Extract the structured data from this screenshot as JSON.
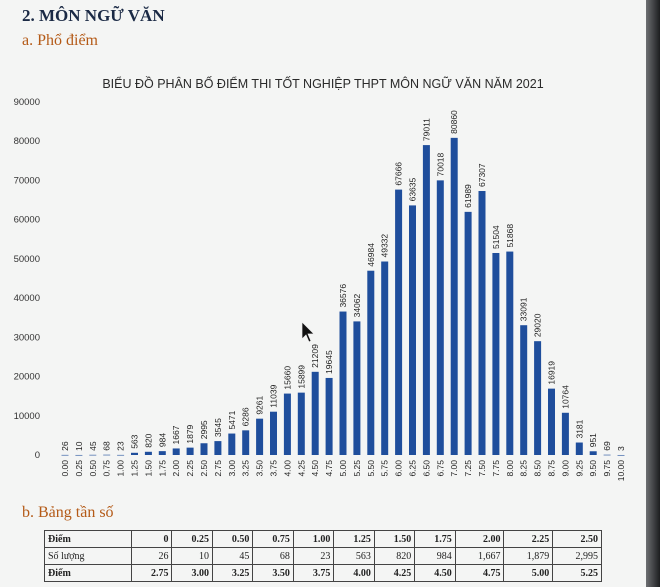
{
  "section": {
    "number_title": "2. MÔN NGỮ VĂN",
    "sub_a": "a.  Phổ điểm",
    "sub_b": "b.  Bảng tần số"
  },
  "colors": {
    "bar": "#1f4e9c",
    "title": "#2a2a2a",
    "accent": "#b45a17"
  },
  "chart_data": {
    "type": "bar",
    "title": "BIỂU ĐỒ PHÂN BỐ ĐIỂM THI TỐT NGHIỆP THPT MÔN NGỮ VĂN NĂM 2021",
    "xlabel": "",
    "ylabel": "",
    "ylim": [
      0,
      90000
    ],
    "yticks": [
      0,
      10000,
      20000,
      30000,
      40000,
      50000,
      60000,
      70000,
      80000,
      90000
    ],
    "grid": false,
    "categories": [
      "0.00",
      "0.25",
      "0.50",
      "0.75",
      "1.00",
      "1.25",
      "1.50",
      "1.75",
      "2.00",
      "2.25",
      "2.50",
      "2.75",
      "3.00",
      "3.25",
      "3.50",
      "3.75",
      "4.00",
      "4.25",
      "4.50",
      "4.75",
      "5.00",
      "5.25",
      "5.50",
      "5.75",
      "6.00",
      "6.25",
      "6.50",
      "6.75",
      "7.00",
      "7.25",
      "7.50",
      "7.75",
      "8.00",
      "8.25",
      "8.50",
      "8.75",
      "9.00",
      "9.25",
      "9.50",
      "9.75",
      "10.00"
    ],
    "values": [
      26,
      10,
      45,
      68,
      23,
      563,
      820,
      984,
      1667,
      1879,
      2995,
      3545,
      5471,
      6286,
      9261,
      11039,
      15660,
      15899,
      21209,
      19645,
      36576,
      34062,
      46984,
      49332,
      67666,
      63635,
      79011,
      70018,
      80860,
      61989,
      67307,
      51504,
      51868,
      33091,
      29020,
      16919,
      10764,
      3181,
      951,
      69,
      3
    ]
  },
  "table": {
    "rows": [
      {
        "label": "Điểm",
        "cells": [
          "0",
          "0.25",
          "0.50",
          "0.75",
          "1.00",
          "1.25",
          "1.50",
          "1.75",
          "2.00",
          "2.25",
          "2.50"
        ]
      },
      {
        "label": "Số lượng",
        "cells": [
          "26",
          "10",
          "45",
          "68",
          "23",
          "563",
          "820",
          "984",
          "1,667",
          "1,879",
          "2,995"
        ]
      },
      {
        "label": "Điểm",
        "cells": [
          "2.75",
          "3.00",
          "3.25",
          "3.50",
          "3.75",
          "4.00",
          "4.25",
          "4.50",
          "4.75",
          "5.00",
          "5.25"
        ]
      }
    ]
  }
}
